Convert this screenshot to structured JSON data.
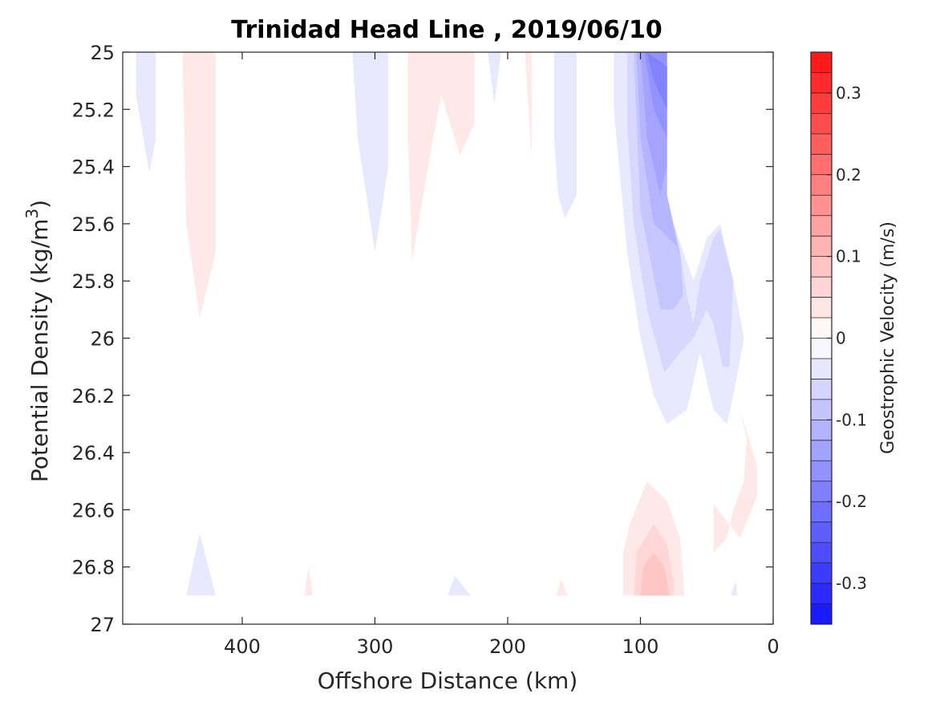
{
  "chart_data": {
    "type": "heatmap",
    "subtype": "filled-contour",
    "title": "Trinidad Head Line , 2019/06/10",
    "xlabel": "Offshore Distance (km)",
    "ylabel_main": "Potential Density (kg/m",
    "ylabel_sup": "3",
    "ylabel_end": ")",
    "xlim": [
      490,
      0
    ],
    "x_reversed": true,
    "ylim": [
      25,
      27
    ],
    "y_reversed": true,
    "x_ticks": [
      400,
      300,
      200,
      100,
      0
    ],
    "x_tick_labels": [
      "400",
      "300",
      "200",
      "100",
      "0"
    ],
    "y_ticks": [
      25,
      25.2,
      25.4,
      25.6,
      25.8,
      26,
      26.2,
      26.4,
      26.6,
      26.8,
      27
    ],
    "y_tick_labels": [
      "25",
      "25.2",
      "25.4",
      "25.6",
      "25.8",
      "26",
      "26.2",
      "26.4",
      "26.6",
      "26.8",
      "27"
    ],
    "colorbar": {
      "label": "Geostrophic Velocity (m/s)",
      "range": [
        -0.35,
        0.35
      ],
      "levels": 28,
      "ticks": [
        0.3,
        0.2,
        0.1,
        0,
        -0.1,
        -0.2,
        -0.3
      ],
      "tick_labels": [
        "0.3",
        "0.2",
        "0.1",
        "0",
        "-0.1",
        "-0.2",
        "-0.3"
      ],
      "colormap": "blue-white-red",
      "positive_color": "#ff0000",
      "negative_color": "#0000ff",
      "zero_color": "#ffffff"
    },
    "regions": [
      {
        "sign": "negative",
        "level": 1,
        "points": [
          [
            480,
            25
          ],
          [
            465,
            25
          ],
          [
            465,
            25.3
          ],
          [
            470,
            25.42
          ],
          [
            480,
            25.15
          ]
        ]
      },
      {
        "sign": "positive",
        "level": 1,
        "points": [
          [
            445,
            25
          ],
          [
            420,
            25
          ],
          [
            420,
            25.7
          ],
          [
            432,
            25.93
          ],
          [
            442,
            25.6
          ]
        ]
      },
      {
        "sign": "negative",
        "level": 1,
        "points": [
          [
            317,
            25
          ],
          [
            290,
            25
          ],
          [
            290,
            25.4
          ],
          [
            300,
            25.7
          ],
          [
            313,
            25.3
          ]
        ]
      },
      {
        "sign": "positive",
        "level": 1,
        "points": [
          [
            275,
            25
          ],
          [
            225,
            25
          ],
          [
            225,
            25.25
          ],
          [
            236,
            25.36
          ],
          [
            250,
            25.15
          ],
          [
            260,
            25.4
          ],
          [
            272,
            25.73
          ],
          [
            275,
            25.3
          ]
        ]
      },
      {
        "sign": "negative",
        "level": 1,
        "points": [
          [
            215,
            25
          ],
          [
            205,
            25
          ],
          [
            210,
            25.18
          ]
        ]
      },
      {
        "sign": "positive",
        "level": 1,
        "points": [
          [
            187,
            25
          ],
          [
            182,
            25
          ],
          [
            182,
            25.37
          ]
        ]
      },
      {
        "sign": "negative",
        "level": 1,
        "points": [
          [
            165,
            25
          ],
          [
            148,
            25
          ],
          [
            148,
            25.5
          ],
          [
            157,
            25.58
          ],
          [
            162,
            25.5
          ],
          [
            165,
            25.3
          ]
        ]
      },
      {
        "sign": "negative",
        "level": 1,
        "points": [
          [
            120,
            25
          ],
          [
            80,
            25
          ],
          [
            80,
            25.5
          ],
          [
            75,
            25.6
          ],
          [
            60,
            25.8
          ],
          [
            50,
            25.65
          ],
          [
            40,
            25.6
          ],
          [
            30,
            25.8
          ],
          [
            22,
            26
          ],
          [
            30,
            26.2
          ],
          [
            35,
            26.3
          ],
          [
            45,
            26.25
          ],
          [
            55,
            26.05
          ],
          [
            65,
            26.25
          ],
          [
            80,
            26.3
          ],
          [
            90,
            26.2
          ],
          [
            100,
            26
          ],
          [
            110,
            25.7
          ],
          [
            120,
            25.2
          ]
        ]
      },
      {
        "sign": "negative",
        "level": 2,
        "points": [
          [
            110,
            25
          ],
          [
            80,
            25
          ],
          [
            80,
            25.5
          ],
          [
            70,
            25.7
          ],
          [
            65,
            25.85
          ],
          [
            60,
            25.95
          ],
          [
            55,
            25.8
          ],
          [
            45,
            25.65
          ],
          [
            40,
            25.62
          ],
          [
            30,
            25.8
          ],
          [
            33,
            26.1
          ],
          [
            38,
            26.1
          ],
          [
            45,
            25.95
          ],
          [
            50,
            25.9
          ],
          [
            60,
            26.0
          ],
          [
            70,
            26.05
          ],
          [
            82,
            26.12
          ],
          [
            95,
            25.9
          ],
          [
            105,
            25.6
          ],
          [
            110,
            25.25
          ]
        ]
      },
      {
        "sign": "negative",
        "level": 3,
        "points": [
          [
            105,
            25
          ],
          [
            80,
            25
          ],
          [
            80,
            25.5
          ],
          [
            70,
            25.7
          ],
          [
            68,
            25.85
          ],
          [
            75,
            25.9
          ],
          [
            85,
            25.9
          ],
          [
            100,
            25.55
          ]
        ]
      },
      {
        "sign": "negative",
        "level": 4,
        "points": [
          [
            103,
            25
          ],
          [
            80,
            25
          ],
          [
            80,
            25.5
          ],
          [
            72,
            25.68
          ],
          [
            90,
            25.6
          ],
          [
            100,
            25.3
          ]
        ]
      },
      {
        "sign": "negative",
        "level": 5,
        "points": [
          [
            100,
            25
          ],
          [
            80,
            25
          ],
          [
            80,
            25.4
          ],
          [
            85,
            25.5
          ],
          [
            95,
            25.3
          ]
        ]
      },
      {
        "sign": "negative",
        "level": 6,
        "points": [
          [
            97,
            25
          ],
          [
            80,
            25
          ],
          [
            80,
            25.3
          ],
          [
            90,
            25.2
          ]
        ]
      },
      {
        "sign": "negative",
        "level": 7,
        "points": [
          [
            95,
            25
          ],
          [
            80,
            25.05
          ],
          [
            80,
            25.2
          ],
          [
            90,
            25.1
          ]
        ]
      },
      {
        "sign": "positive",
        "level": 1,
        "points": [
          [
            113,
            26.9
          ],
          [
            113,
            26.75
          ],
          [
            108,
            26.65
          ],
          [
            95,
            26.5
          ],
          [
            80,
            26.57
          ],
          [
            70,
            26.7
          ],
          [
            67,
            26.9
          ]
        ]
      },
      {
        "sign": "positive",
        "level": 2,
        "points": [
          [
            105,
            26.9
          ],
          [
            103,
            26.75
          ],
          [
            90,
            26.65
          ],
          [
            80,
            26.72
          ],
          [
            75,
            26.85
          ],
          [
            75,
            26.9
          ]
        ]
      },
      {
        "sign": "positive",
        "level": 3,
        "points": [
          [
            100,
            26.9
          ],
          [
            98,
            26.8
          ],
          [
            90,
            26.75
          ],
          [
            82,
            26.8
          ],
          [
            78,
            26.9
          ]
        ]
      },
      {
        "sign": "positive",
        "level": 1,
        "points": [
          [
            45,
            26.58
          ],
          [
            45,
            26.75
          ],
          [
            35,
            26.7
          ],
          [
            30,
            26.6
          ],
          [
            22,
            26.5
          ],
          [
            20,
            26.35
          ],
          [
            25,
            26.25
          ],
          [
            12,
            26.45
          ],
          [
            12,
            26.55
          ],
          [
            25,
            26.7
          ]
        ]
      },
      {
        "sign": "negative",
        "level": 1,
        "points": [
          [
            442,
            26.9
          ],
          [
            432,
            26.68
          ],
          [
            420,
            26.9
          ]
        ]
      },
      {
        "sign": "positive",
        "level": 1,
        "points": [
          [
            353,
            26.9
          ],
          [
            350,
            26.8
          ],
          [
            347,
            26.9
          ]
        ]
      },
      {
        "sign": "negative",
        "level": 1,
        "points": [
          [
            245,
            26.9
          ],
          [
            240,
            26.83
          ],
          [
            228,
            26.9
          ]
        ]
      },
      {
        "sign": "positive",
        "level": 1,
        "points": [
          [
            163,
            26.9
          ],
          [
            160,
            26.84
          ],
          [
            155,
            26.9
          ]
        ]
      },
      {
        "sign": "negative",
        "level": 1,
        "points": [
          [
            32,
            26.9
          ],
          [
            28,
            26.85
          ],
          [
            27,
            26.9
          ]
        ]
      }
    ]
  }
}
